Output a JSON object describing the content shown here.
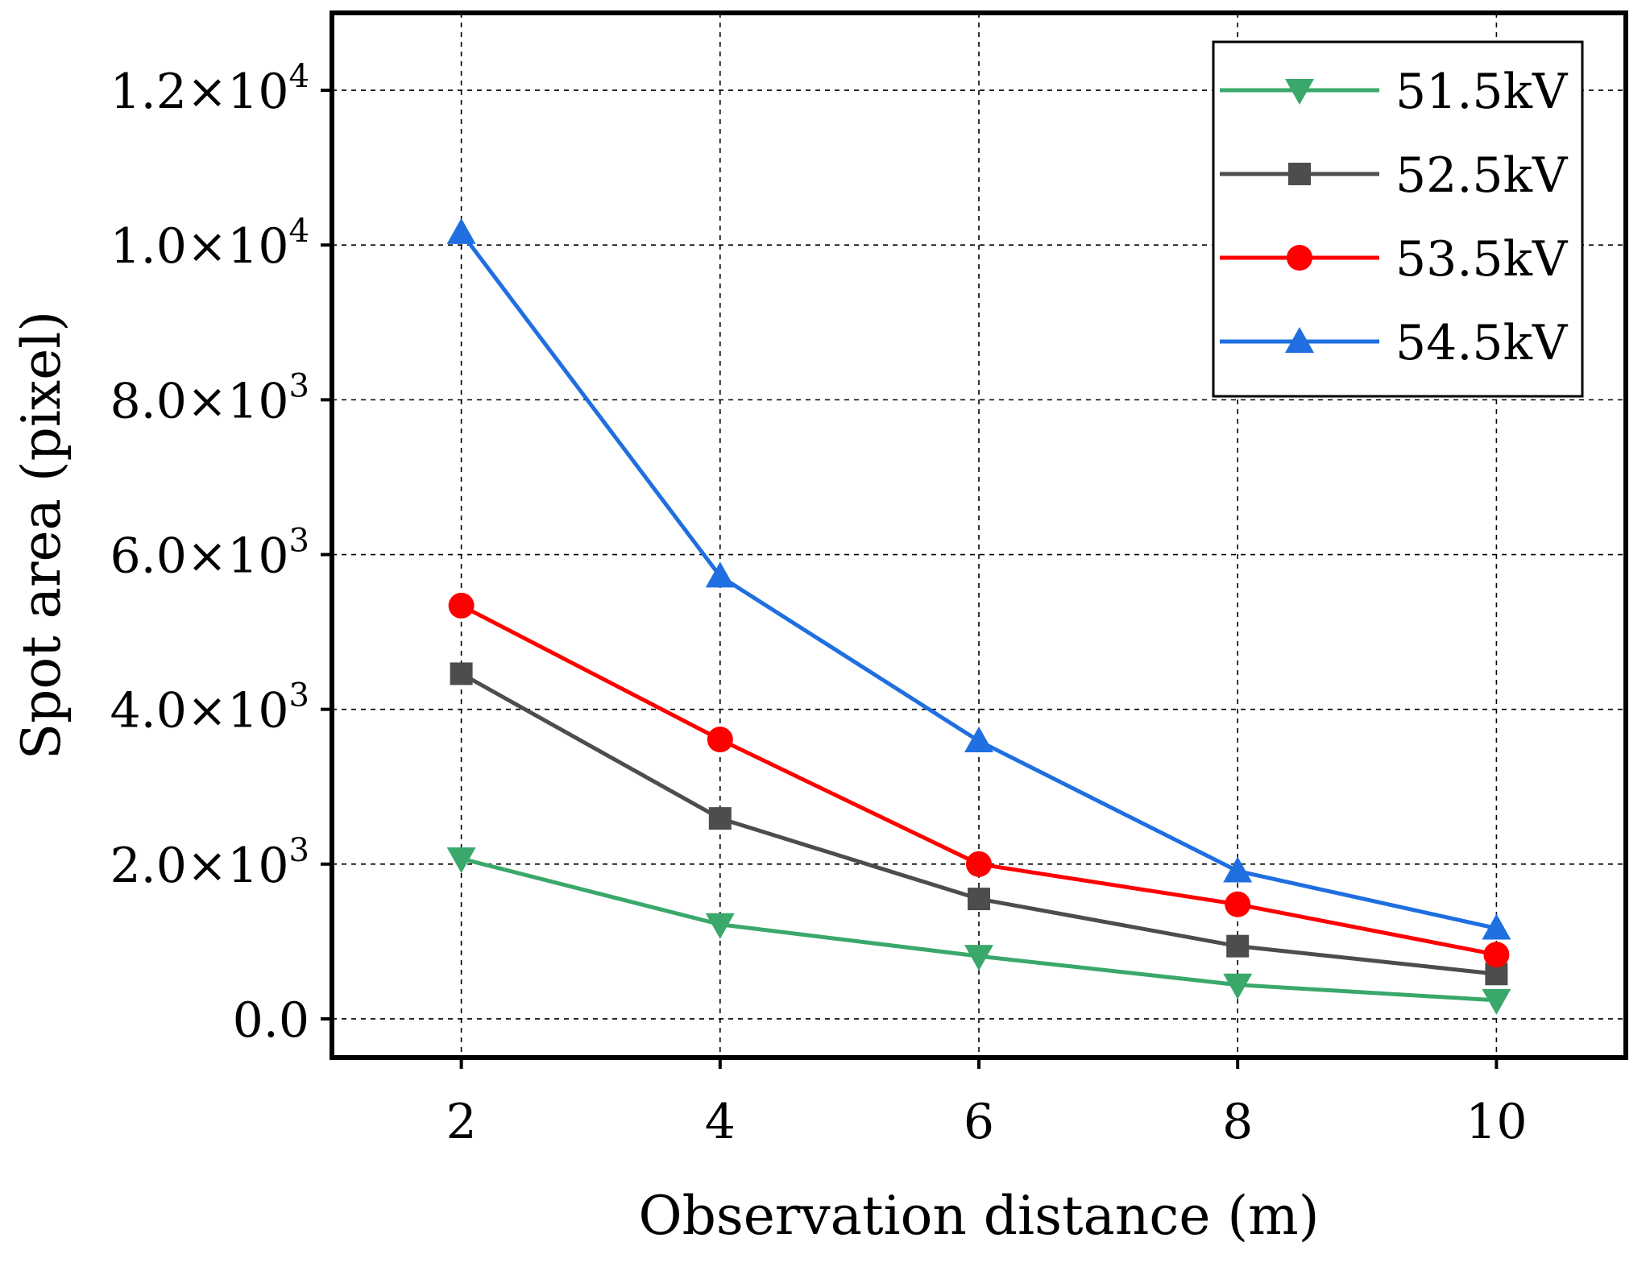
{
  "chart_data": {
    "type": "line",
    "xlabel": "Observation distance (m)",
    "ylabel": "Spot area (pixel)",
    "x": [
      2,
      4,
      6,
      8,
      10
    ],
    "xlim": [
      1,
      11
    ],
    "ylim": [
      -500,
      13000
    ],
    "xticks": [
      {
        "value": 2,
        "label": "2"
      },
      {
        "value": 4,
        "label": "4"
      },
      {
        "value": 6,
        "label": "6"
      },
      {
        "value": 8,
        "label": "8"
      },
      {
        "value": 10,
        "label": "10"
      }
    ],
    "yticks": [
      {
        "value": 0,
        "mantissa": "0.0",
        "exponent": ""
      },
      {
        "value": 2000,
        "mantissa": "2.0",
        "exponent": "3"
      },
      {
        "value": 4000,
        "mantissa": "4.0",
        "exponent": "3"
      },
      {
        "value": 6000,
        "mantissa": "6.0",
        "exponent": "3"
      },
      {
        "value": 8000,
        "mantissa": "8.0",
        "exponent": "3"
      },
      {
        "value": 10000,
        "mantissa": "1.0",
        "exponent": "4"
      },
      {
        "value": 12000,
        "mantissa": "1.2",
        "exponent": "4"
      }
    ],
    "ytick_multiplier": "×10",
    "grid": true,
    "legend_position": "top-right",
    "series": [
      {
        "name": "51.5kV",
        "color": "#3aa86b",
        "marker": "triangle-down",
        "values": [
          2070,
          1220,
          810,
          440,
          240
        ]
      },
      {
        "name": "52.5kV",
        "color": "#4d4d4d",
        "marker": "square",
        "values": [
          4460,
          2590,
          1550,
          940,
          580
        ]
      },
      {
        "name": "53.5kV",
        "color": "#ff0000",
        "marker": "circle",
        "values": [
          5340,
          3610,
          2000,
          1480,
          830
        ]
      },
      {
        "name": "54.5kV",
        "color": "#1f6fe0",
        "marker": "triangle-up",
        "values": [
          10160,
          5720,
          3590,
          1910,
          1170
        ]
      }
    ]
  }
}
